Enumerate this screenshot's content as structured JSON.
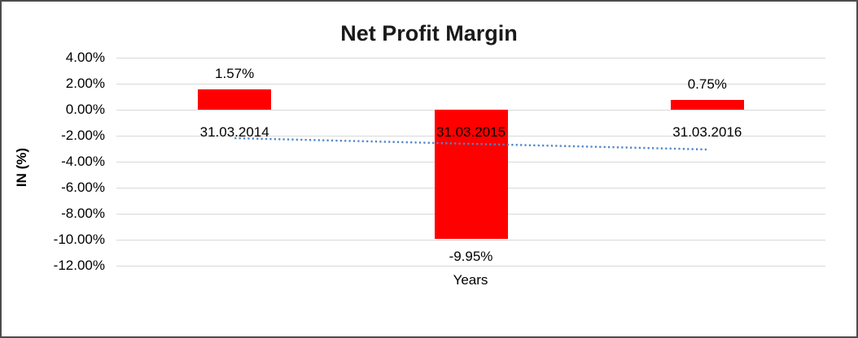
{
  "window": {
    "background": "#FFFFFF",
    "border_color": "#4C4C4C"
  },
  "chart_data": {
    "type": "bar",
    "title": "Net Profit Margin",
    "categories": [
      "31.03.2014",
      "31.03.2015",
      "31.03.2016"
    ],
    "values": [
      1.57,
      -9.95,
      0.75
    ],
    "data_labels": [
      "1.57%",
      "-9.95%",
      "0.75%"
    ],
    "xlabel": "Years",
    "ylabel": "IN (%)",
    "ylim": [
      -12,
      4
    ],
    "ytick_step": 2,
    "yticks": [
      4,
      2,
      0,
      -2,
      -4,
      -6,
      -8,
      -10,
      -12
    ],
    "ytick_labels": [
      "4.00%",
      "2.00%",
      "0.00%",
      "-2.00%",
      "-4.00%",
      "-6.00%",
      "-8.00%",
      "-10.00%",
      "-12.00%"
    ],
    "grid": true,
    "legend": false,
    "bar_color": "#FF0000",
    "gridline_color": "#D9D9D9",
    "text_color": "#000000",
    "title_color": "#1A1A1A",
    "trendline": {
      "type": "linear",
      "style": "dotted",
      "color": "#4E86C8",
      "start_value": -2.19,
      "end_value": -3.06
    }
  }
}
